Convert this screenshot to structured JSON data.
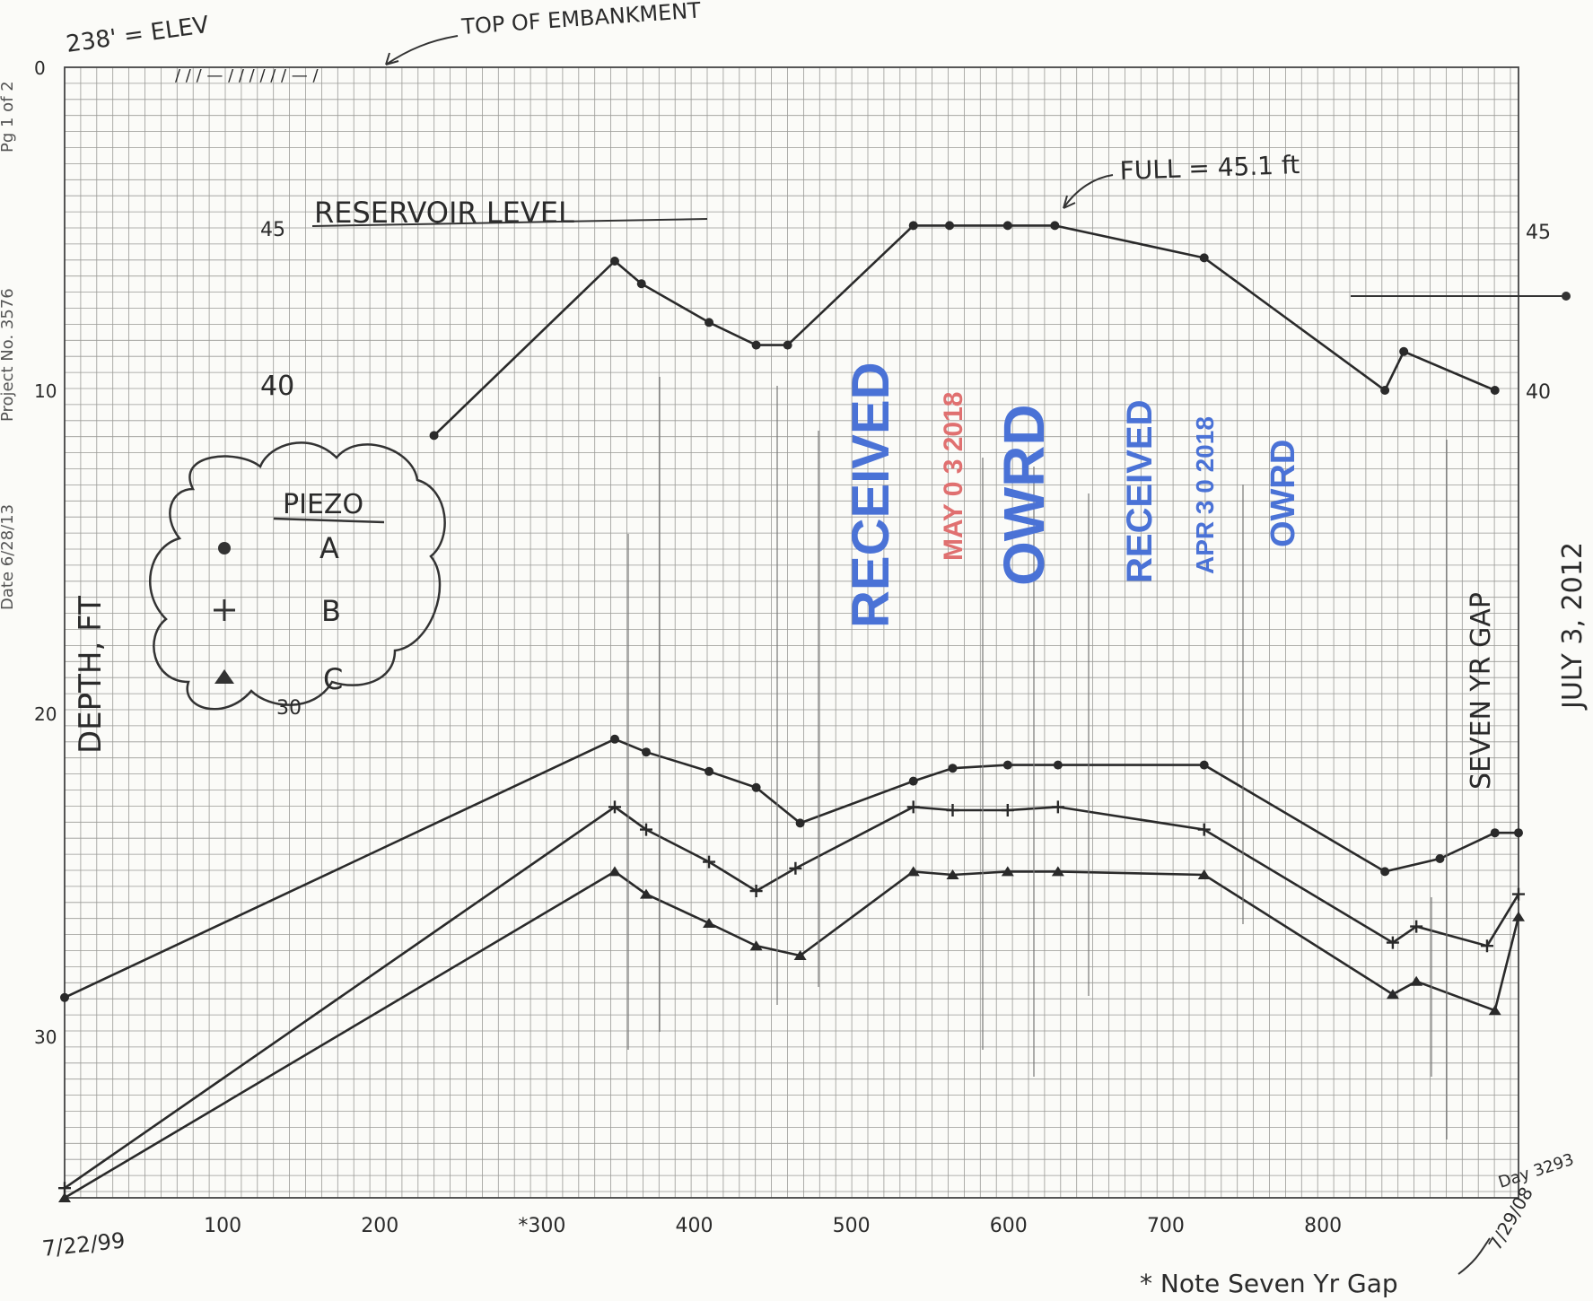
{
  "side_labels": [
    "Date 6/28/13",
    "Project No. 3576",
    "Pg 1 of 2"
  ],
  "annotations": {
    "elev": "238' = ELEV",
    "top": "TOP OF EMBANKMENT",
    "full": "FULL = 45.1 ft",
    "res": "RESERVOIR LEVEL",
    "res45": "45",
    "res40": "40",
    "right45": "45",
    "right40": "40",
    "gap_vertical": "SEVEN YR GAP",
    "date_vertical": "JULY 3, 2012",
    "note": "* Note Seven Yr Gap",
    "start_date": "7/22/99",
    "day_end": "Day 3293",
    "end_date": "7/29/08",
    "x300": "*300",
    "y30_stray": "30"
  },
  "legend": {
    "title": "PIEZO",
    "items": [
      {
        "marker": "dot",
        "label": "A"
      },
      {
        "marker": "plus",
        "label": "B"
      },
      {
        "marker": "triangle",
        "label": "C"
      }
    ]
  },
  "stamps": [
    {
      "text": "RECEIVED",
      "color": "#4a72d6"
    },
    {
      "text": "MAY 0 3 2018",
      "color": "#e07070"
    },
    {
      "text": "OWRD",
      "color": "#4a72d6"
    },
    {
      "text": "RECEIVED",
      "color": "#4a72d6"
    },
    {
      "text": "APR 3 0 2018",
      "color": "#4a72d6"
    },
    {
      "text": "OWRD",
      "color": "#4a72d6"
    }
  ],
  "chart_data": {
    "type": "line",
    "title": "",
    "xlabel": "",
    "ylabel": "DEPTH, FT",
    "xlim": [
      0,
      925
    ],
    "ylim": [
      35,
      0
    ],
    "x_ticks": [
      100,
      200,
      300,
      400,
      500,
      600,
      700,
      800
    ],
    "x_tick_labels": [
      "100",
      "200",
      "*300",
      "400",
      "500",
      "600",
      "700",
      "800"
    ],
    "y_ticks": [
      0,
      10,
      20,
      30
    ],
    "y_tick_labels": [
      "0",
      "10",
      "20",
      "30"
    ],
    "grid": true,
    "series": [
      {
        "name": "RESERVOIR LEVEL",
        "marker": "dot",
        "x": [
          235,
          350,
          367,
          410,
          440,
          460,
          540,
          563,
          600,
          630,
          725,
          840,
          852,
          910
        ],
        "y": [
          11.4,
          6.0,
          6.7,
          7.9,
          8.6,
          8.6,
          4.9,
          4.9,
          4.9,
          4.9,
          5.9,
          10.0,
          8.8,
          10.0
        ]
      },
      {
        "name": "A",
        "marker": "dot",
        "x": [
          0,
          350,
          370,
          410,
          440,
          468,
          540,
          565,
          600,
          632,
          725,
          840,
          875,
          910,
          925
        ],
        "y": [
          28.8,
          20.8,
          21.2,
          21.8,
          22.3,
          23.4,
          22.1,
          21.7,
          21.6,
          21.6,
          21.6,
          24.9,
          24.5,
          23.7,
          23.7
        ]
      },
      {
        "name": "B",
        "marker": "plus",
        "x": [
          0,
          350,
          370,
          410,
          440,
          465,
          540,
          565,
          600,
          632,
          725,
          845,
          860,
          905,
          925
        ],
        "y": [
          34.7,
          22.9,
          23.6,
          24.6,
          25.5,
          24.8,
          22.9,
          23.0,
          23.0,
          22.9,
          23.6,
          27.1,
          26.6,
          27.2,
          25.6
        ]
      },
      {
        "name": "C",
        "marker": "triangle",
        "x": [
          0,
          350,
          370,
          410,
          440,
          468,
          540,
          565,
          600,
          632,
          725,
          845,
          860,
          910,
          925
        ],
        "y": [
          35.0,
          24.9,
          25.6,
          26.5,
          27.2,
          27.5,
          24.9,
          25.0,
          24.9,
          24.9,
          25.0,
          28.7,
          28.3,
          29.2,
          26.3
        ]
      }
    ]
  }
}
